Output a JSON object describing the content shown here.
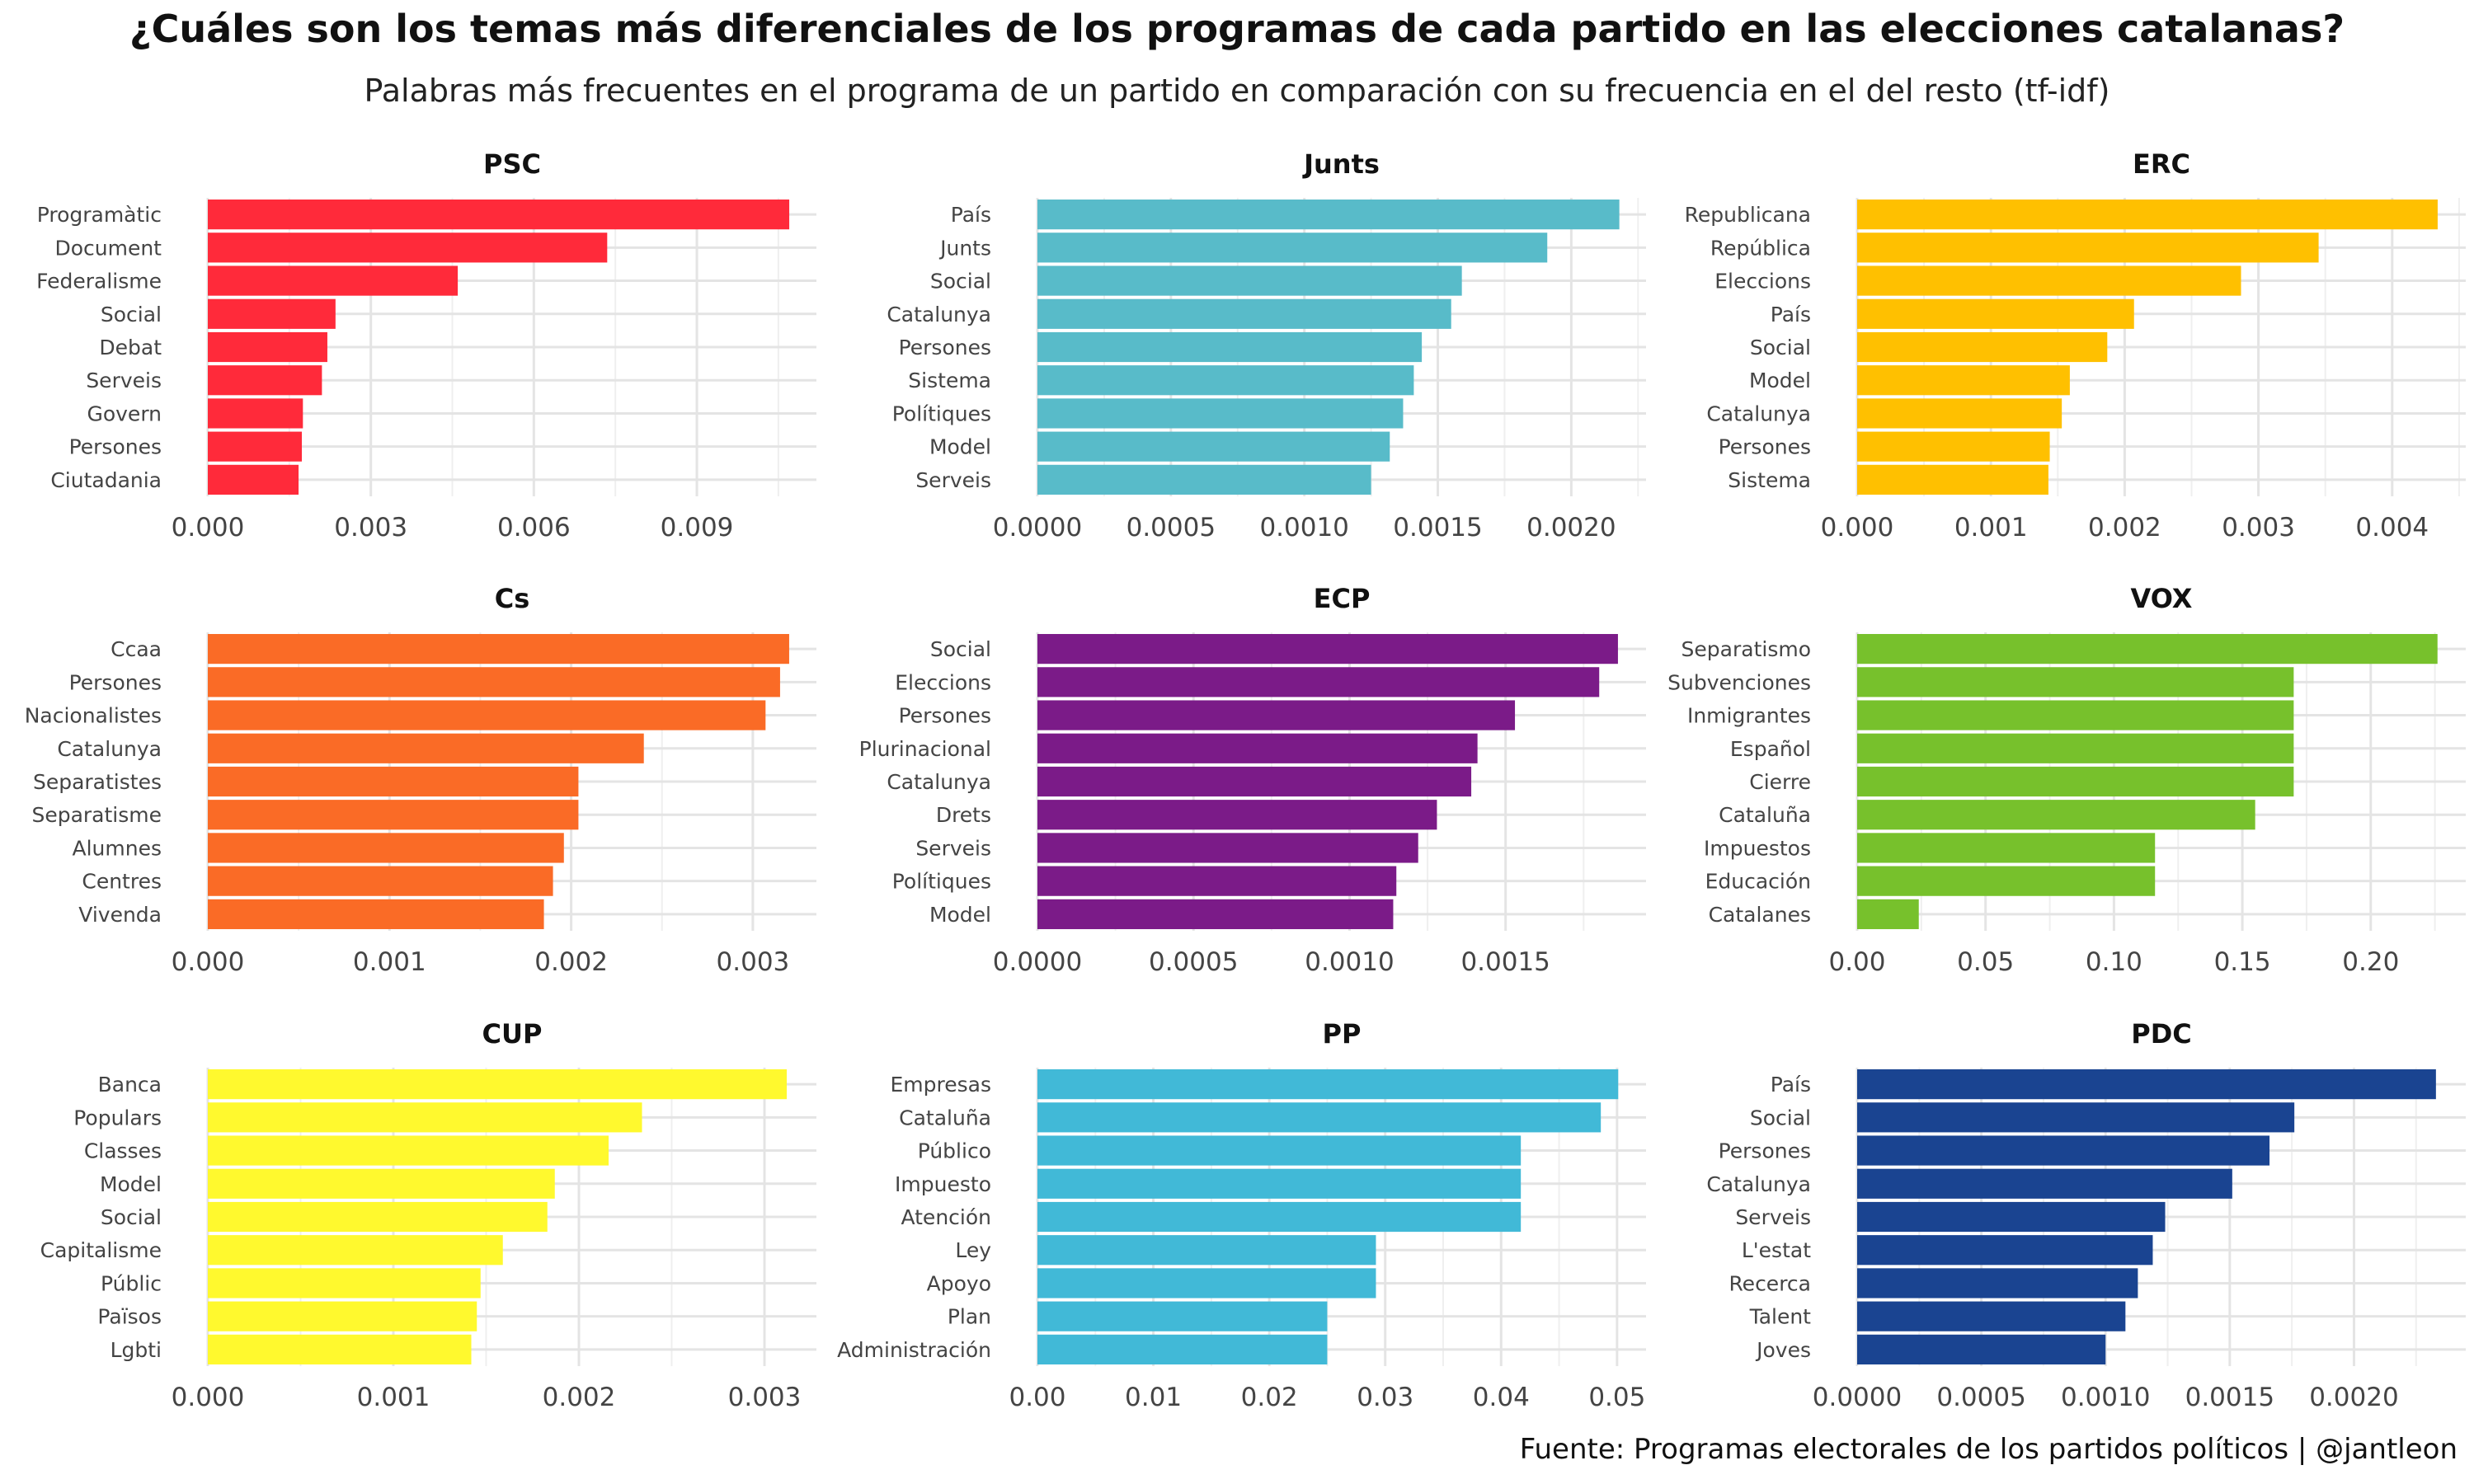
{
  "title": "¿Cuáles son los temas más diferenciales de los programas de cada partido en las elecciones catalanas?",
  "subtitle": "Palabras más frecuentes en el programa de un partido en comparación con su frecuencia en el del resto (tf-idf)",
  "caption": "Fuente: Programas electorales de los partidos políticos | @jantleon",
  "chart_data": [
    {
      "type": "bar",
      "orientation": "horizontal",
      "title": "PSC",
      "color": "#FF2A3A",
      "categories": [
        "Programàtic",
        "Document",
        "Federalisme",
        "Social",
        "Debat",
        "Serveis",
        "Govern",
        "Persones",
        "Ciutadania"
      ],
      "values": [
        0.0107,
        0.00735,
        0.0046,
        0.00235,
        0.0022,
        0.0021,
        0.00175,
        0.00173,
        0.00167
      ],
      "xlim": [
        0,
        0.0112
      ],
      "ticks": [
        0,
        0.003,
        0.006,
        0.009
      ],
      "tick_labels": [
        "0.000",
        "0.003",
        "0.006",
        "0.009"
      ],
      "grid": true
    },
    {
      "type": "bar",
      "orientation": "horizontal",
      "title": "Junts",
      "color": "#58BBC9",
      "categories": [
        "País",
        "Junts",
        "Social",
        "Catalunya",
        "Persones",
        "Sistema",
        "Polítiques",
        "Model",
        "Serveis"
      ],
      "values": [
        0.00218,
        0.00191,
        0.00159,
        0.00155,
        0.00144,
        0.00141,
        0.00137,
        0.00132,
        0.00125
      ],
      "xlim": [
        0,
        0.00228
      ],
      "ticks": [
        0,
        0.0005,
        0.001,
        0.0015,
        0.002
      ],
      "tick_labels": [
        "0.0000",
        "0.0005",
        "0.0010",
        "0.0015",
        "0.0020"
      ],
      "grid": true
    },
    {
      "type": "bar",
      "orientation": "horizontal",
      "title": "ERC",
      "color": "#FFC000",
      "categories": [
        "Republicana",
        "República",
        "Eleccions",
        "País",
        "Social",
        "Model",
        "Catalunya",
        "Persones",
        "Sistema"
      ],
      "values": [
        0.00434,
        0.00345,
        0.00287,
        0.00207,
        0.00187,
        0.00159,
        0.00153,
        0.00144,
        0.00143
      ],
      "xlim": [
        0,
        0.00455
      ],
      "ticks": [
        0,
        0.001,
        0.002,
        0.003,
        0.004
      ],
      "tick_labels": [
        "0.000",
        "0.001",
        "0.002",
        "0.003",
        "0.004"
      ],
      "grid": true
    },
    {
      "type": "bar",
      "orientation": "horizontal",
      "title": "Cs",
      "color": "#FA6B26",
      "categories": [
        "Ccaa",
        "Persones",
        "Nacionalistes",
        "Catalunya",
        "Separatistes",
        "Separatisme",
        "Alumnes",
        "Centres",
        "Vivenda"
      ],
      "values": [
        0.0032,
        0.00315,
        0.00307,
        0.0024,
        0.00204,
        0.00204,
        0.00196,
        0.0019,
        0.00185
      ],
      "xlim": [
        0,
        0.00335
      ],
      "ticks": [
        0,
        0.001,
        0.002,
        0.003
      ],
      "tick_labels": [
        "0.000",
        "0.001",
        "0.002",
        "0.003"
      ],
      "grid": true
    },
    {
      "type": "bar",
      "orientation": "horizontal",
      "title": "ECP",
      "color": "#7B1B88",
      "categories": [
        "Social",
        "Eleccions",
        "Persones",
        "Plurinacional",
        "Catalunya",
        "Drets",
        "Serveis",
        "Polítiques",
        "Model"
      ],
      "values": [
        0.00186,
        0.0018,
        0.00153,
        0.00141,
        0.00139,
        0.00128,
        0.00122,
        0.00115,
        0.00114
      ],
      "xlim": [
        0,
        0.00195
      ],
      "ticks": [
        0,
        0.0005,
        0.001,
        0.0015
      ],
      "tick_labels": [
        "0.0000",
        "0.0005",
        "0.0010",
        "0.0015"
      ],
      "grid": true
    },
    {
      "type": "bar",
      "orientation": "horizontal",
      "title": "VOX",
      "color": "#77C12C",
      "categories": [
        "Separatismo",
        "Subvenciones",
        "Inmigrantes",
        "Español",
        "Cierre",
        "Cataluña",
        "Impuestos",
        "Educación",
        "Catalanes"
      ],
      "values": [
        0.226,
        0.17,
        0.17,
        0.17,
        0.17,
        0.155,
        0.116,
        0.116,
        0.024
      ],
      "xlim": [
        0,
        0.237
      ],
      "ticks": [
        0,
        0.05,
        0.1,
        0.15,
        0.2
      ],
      "tick_labels": [
        "0.00",
        "0.05",
        "0.10",
        "0.15",
        "0.20"
      ],
      "grid": true
    },
    {
      "type": "bar",
      "orientation": "horizontal",
      "title": "CUP",
      "color": "#FFF92E",
      "categories": [
        "Banca",
        "Populars",
        "Classes",
        "Model",
        "Social",
        "Capitalisme",
        "Públic",
        "Països",
        "Lgbti"
      ],
      "values": [
        0.00312,
        0.00234,
        0.00216,
        0.00187,
        0.00183,
        0.00159,
        0.00147,
        0.00145,
        0.00142
      ],
      "xlim": [
        0,
        0.00328
      ],
      "ticks": [
        0,
        0.001,
        0.002,
        0.003
      ],
      "tick_labels": [
        "0.000",
        "0.001",
        "0.002",
        "0.003"
      ],
      "grid": true
    },
    {
      "type": "bar",
      "orientation": "horizontal",
      "title": "PP",
      "color": "#41B9D7",
      "categories": [
        "Empresas",
        "Cataluña",
        "Público",
        "Impuesto",
        "Atención",
        "Ley",
        "Apoyo",
        "Plan",
        "Administración"
      ],
      "values": [
        0.0501,
        0.0486,
        0.0417,
        0.0417,
        0.0417,
        0.0292,
        0.0292,
        0.025,
        0.025
      ],
      "xlim": [
        0,
        0.0525
      ],
      "ticks": [
        0,
        0.01,
        0.02,
        0.03,
        0.04,
        0.05
      ],
      "tick_labels": [
        "0.00",
        "0.01",
        "0.02",
        "0.03",
        "0.04",
        "0.05"
      ],
      "grid": true
    },
    {
      "type": "bar",
      "orientation": "horizontal",
      "title": "PDC",
      "color": "#1A4491",
      "categories": [
        "País",
        "Social",
        "Persones",
        "Catalunya",
        "Serveis",
        "L'estat",
        "Recerca",
        "Talent",
        "Joves"
      ],
      "values": [
        0.00233,
        0.00176,
        0.00166,
        0.00151,
        0.00124,
        0.00119,
        0.00113,
        0.00108,
        0.001
      ],
      "xlim": [
        0,
        0.00245
      ],
      "ticks": [
        0,
        0.0005,
        0.001,
        0.0015,
        0.002
      ],
      "tick_labels": [
        "0.0000",
        "0.0005",
        "0.0010",
        "0.0015",
        "0.0020"
      ],
      "grid": true
    }
  ]
}
